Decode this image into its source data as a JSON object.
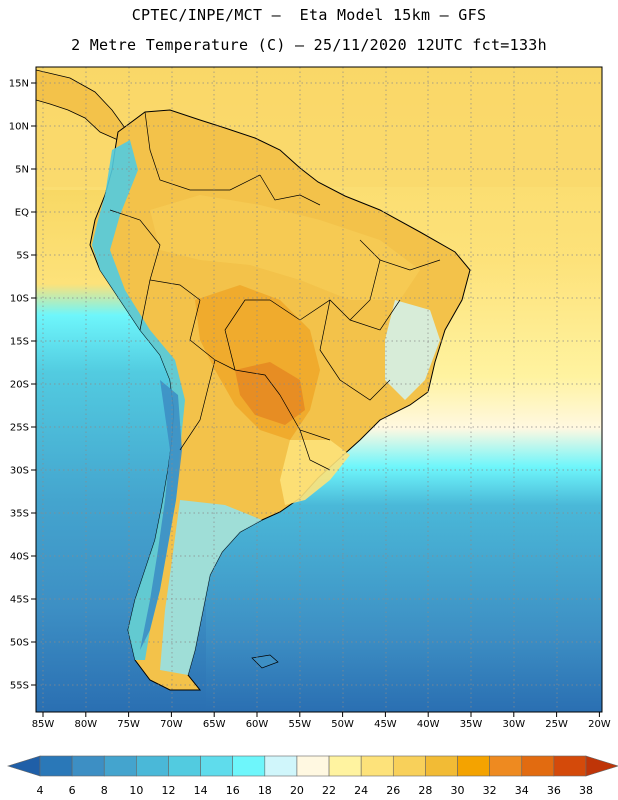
{
  "header": {
    "title_line1": "CPTEC/INPE/MCT –  Eta Model 15km – GFS",
    "title_line2": "2 Metre Temperature (C) – 25/11/2020 12UTC fct=133h"
  },
  "map": {
    "lat_ticks": [
      "15N",
      "10N",
      "5N",
      "EQ",
      "5S",
      "10S",
      "15S",
      "20S",
      "25S",
      "30S",
      "35S",
      "40S",
      "45S",
      "50S",
      "55S"
    ],
    "lon_ticks": [
      "85W",
      "80W",
      "75W",
      "70W",
      "65W",
      "60W",
      "55W",
      "50W",
      "45W",
      "40W",
      "35W",
      "30W",
      "25W",
      "20W"
    ],
    "gridlines": "dotted"
  },
  "colorbar": {
    "labels": [
      "4",
      "6",
      "8",
      "10",
      "12",
      "14",
      "16",
      "18",
      "20",
      "22",
      "24",
      "26",
      "28",
      "30",
      "32",
      "34",
      "36",
      "38"
    ],
    "colors": [
      "#1f5fa8",
      "#2a78b8",
      "#3d8fc4",
      "#44a4ce",
      "#4ab8d8",
      "#52cbe0",
      "#5fdcec",
      "#6ef6fb",
      "#d0f6fb",
      "#fff8e1",
      "#fff3a0",
      "#fde27a",
      "#f8d05a",
      "#f2bb35",
      "#f4a300",
      "#ee8a20",
      "#e26b10",
      "#d44a0a",
      "#bf3508"
    ]
  }
}
